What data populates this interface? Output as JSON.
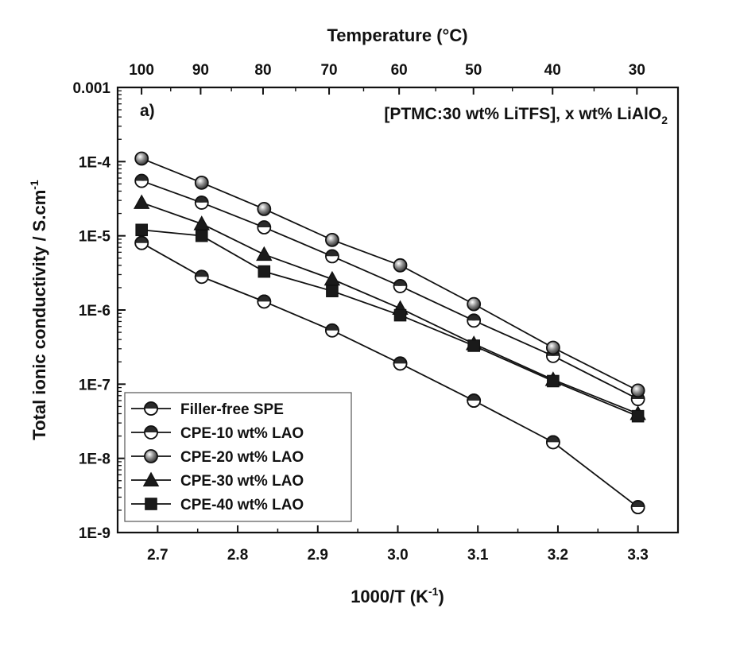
{
  "chart_data": {
    "type": "line",
    "panel_label": "a)",
    "annotation": {
      "main": "[PTMC:30 wt% LiTFS], x wt% LiAlO",
      "subscript": "2"
    },
    "xlabel": {
      "main": "1000/T (K",
      "sup": "-1",
      "tail": ")"
    },
    "ylabel": {
      "main": "Total ionic conductivity / S.cm",
      "sup": "-1"
    },
    "top_xlabel": "Temperature (°C)",
    "xlim": [
      2.65,
      3.35
    ],
    "ylim_log10": [
      -9,
      -3
    ],
    "y_scale": "log",
    "x_ticks": [
      2.7,
      2.8,
      2.9,
      3.0,
      3.1,
      3.2,
      3.3
    ],
    "x_tick_labels": [
      "2.7",
      "2.8",
      "2.9",
      "3.0",
      "3.1",
      "3.2",
      "3.3"
    ],
    "y_tick_labels": [
      "1E-9",
      "1E-8",
      "1E-7",
      "1E-6",
      "1E-5",
      "1E-4",
      "0.001"
    ],
    "top_ticks": [
      100,
      90,
      80,
      70,
      60,
      50,
      40,
      30
    ],
    "top_tick_labels": [
      "100",
      "90",
      "80",
      "70",
      "60",
      "50",
      "40",
      "30"
    ],
    "legend_position": "bottom-left",
    "x": [
      2.68,
      2.755,
      2.833,
      2.918,
      3.003,
      3.095,
      3.194,
      3.3
    ],
    "series": [
      {
        "name": "Filler-free SPE",
        "marker": "circle-half-bottom",
        "values": [
          8e-06,
          2.8e-06,
          1.3e-06,
          5.3e-07,
          1.9e-07,
          6e-08,
          1.65e-08,
          2.2e-09
        ]
      },
      {
        "name": "CPE-10 wt% LAO",
        "marker": "circle-half-top",
        "values": [
          5.5e-05,
          2.8e-05,
          1.3e-05,
          5.3e-06,
          2.1e-06,
          7.2e-07,
          2.4e-07,
          6.3e-08
        ]
      },
      {
        "name": "CPE-20 wt% LAO",
        "marker": "circle-shaded",
        "values": [
          0.00011,
          5.2e-05,
          2.3e-05,
          8.8e-06,
          4e-06,
          1.2e-06,
          3.1e-07,
          8.2e-08
        ]
      },
      {
        "name": "CPE-30 wt% LAO",
        "marker": "triangle",
        "values": [
          2.8e-05,
          1.45e-05,
          5.6e-06,
          2.6e-06,
          1.05e-06,
          3.5e-07,
          1.15e-07,
          4e-08
        ]
      },
      {
        "name": "CPE-40 wt% LAO",
        "marker": "square",
        "values": [
          1.2e-05,
          1e-05,
          3.3e-06,
          1.8e-06,
          8.5e-07,
          3.3e-07,
          1.1e-07,
          3.7e-08
        ]
      }
    ]
  }
}
